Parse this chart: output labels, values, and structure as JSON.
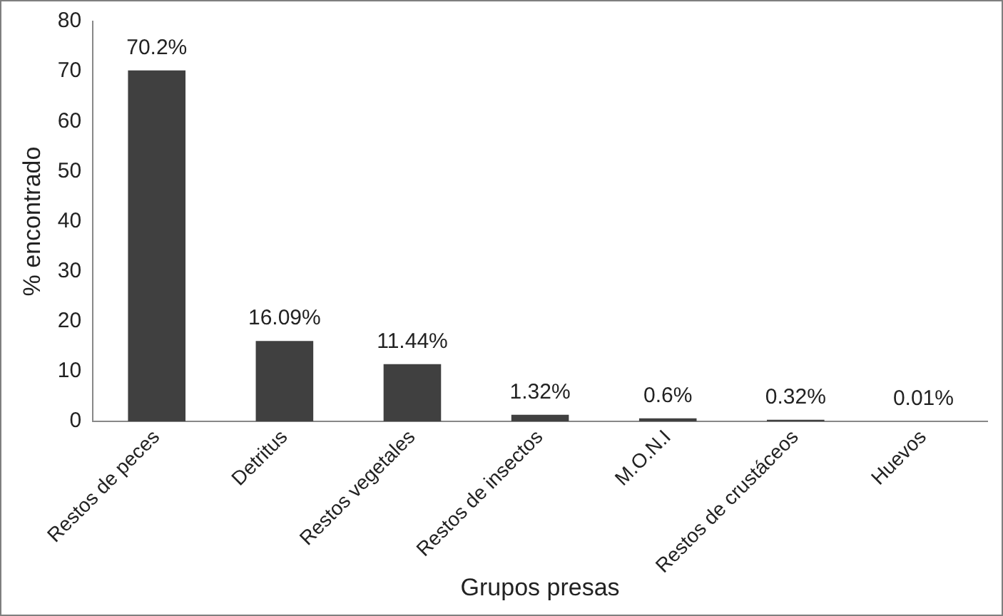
{
  "chart_data": {
    "type": "bar",
    "xlabel": "Grupos presas",
    "ylabel": "% encontrado",
    "categories": [
      "Restos de peces",
      "Detritus",
      "Restos vegetales",
      "Restos de insectos",
      "M.O.N.I",
      "Restos de crustáceos",
      "Huevos"
    ],
    "values": [
      70.2,
      16.09,
      11.44,
      1.32,
      0.6,
      0.32,
      0.01
    ],
    "value_labels": [
      "70.2%",
      "16.09%",
      "11.44%",
      "1.32%",
      "0.6%",
      "0.32%",
      "0.01%"
    ],
    "color": "#404040",
    "ylim": [
      0,
      80
    ],
    "yticks": [
      0,
      10,
      20,
      30,
      40,
      50,
      60,
      70,
      80
    ],
    "grid": false,
    "legend": false
  }
}
